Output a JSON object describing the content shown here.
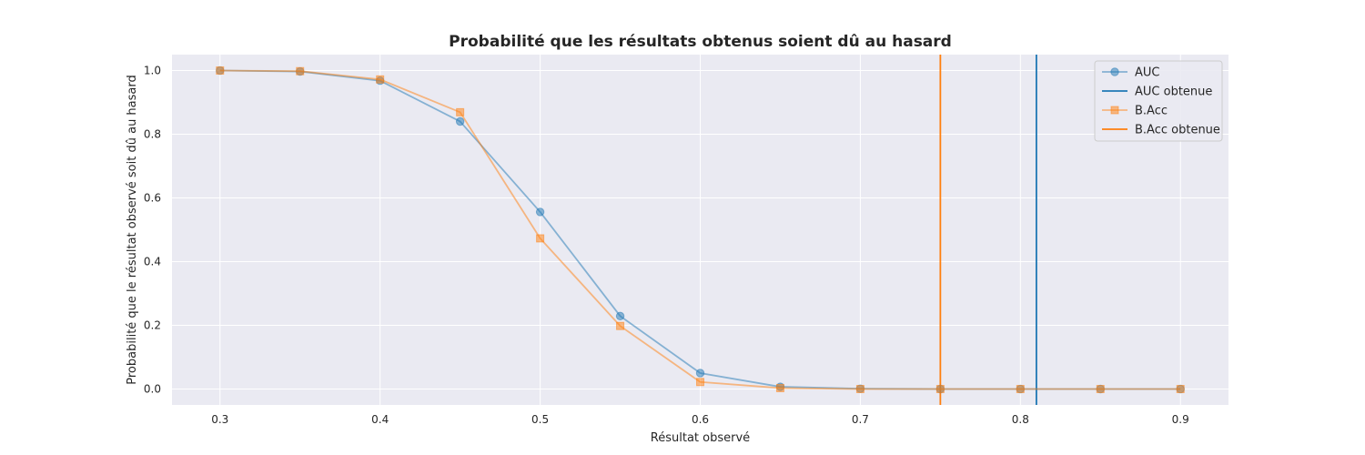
{
  "chart_data": {
    "type": "line",
    "title": "Probabilité que les résultats obtenus soient dû au hasard",
    "xlabel": "Résultat observé",
    "ylabel": "Probabilité que le résultat observé soit dû au hasard",
    "xlim": [
      0.27,
      0.93
    ],
    "ylim": [
      -0.05,
      1.05
    ],
    "xticks": [
      "0.3",
      "0.4",
      "0.5",
      "0.6",
      "0.7",
      "0.8",
      "0.9"
    ],
    "yticks": [
      "0.0",
      "0.2",
      "0.4",
      "0.6",
      "0.8",
      "1.0"
    ],
    "grid": true,
    "legend_position": "top-right",
    "x": [
      0.3,
      0.35,
      0.4,
      0.45,
      0.5,
      0.55,
      0.6,
      0.65,
      0.7,
      0.75,
      0.8,
      0.85,
      0.9
    ],
    "series": [
      {
        "name": "AUC",
        "marker": "circle",
        "color": "#1f77b4",
        "values": [
          1.0,
          0.997,
          0.968,
          0.84,
          0.556,
          0.229,
          0.05,
          0.007,
          0.001,
          0.0,
          0.0,
          0.0,
          0.0
        ]
      },
      {
        "name": "B.Acc",
        "marker": "square",
        "color": "#ff7f0e",
        "values": [
          1.0,
          0.998,
          0.972,
          0.869,
          0.473,
          0.198,
          0.022,
          0.003,
          0.0,
          0.0,
          0.0,
          0.0,
          0.0
        ]
      }
    ],
    "vertical_lines": [
      {
        "name": "AUC obtenue",
        "x": 0.81,
        "color": "#1f77b4"
      },
      {
        "name": "B.Acc obtenue",
        "x": 0.75,
        "color": "#ff7f0e"
      }
    ],
    "background_color": "#eaeaf2"
  }
}
